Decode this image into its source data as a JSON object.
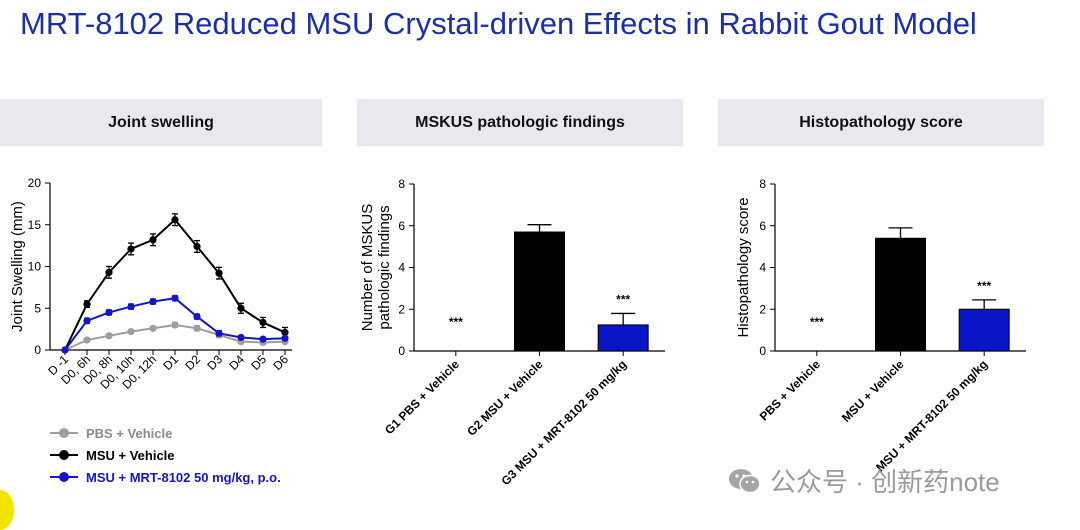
{
  "title": "MRT-8102 Reduced MSU Crystal-driven Effects in Rabbit Gout Model",
  "colors": {
    "title": "#1a2fa8",
    "pbs": "#9e9e9e",
    "vehicle": "#000000",
    "mrt": "#0a14c8",
    "header_bg": "#e7e9ee"
  },
  "panels": [
    {
      "header": "Joint swelling"
    },
    {
      "header": "MSKUS pathologic findings"
    },
    {
      "header": "Histopathology score"
    }
  ],
  "legend": [
    {
      "label": "PBS + Vehicle",
      "color": "#9e9e9e"
    },
    {
      "label": "MSU + Vehicle",
      "color": "#000000"
    },
    {
      "label": "MSU + MRT-8102 50 mg/kg, p.o.",
      "color": "#1414c8"
    }
  ],
  "watermark": {
    "text": "公众号 · 创新药note",
    "icon": "wechat-icon"
  },
  "chart_data": [
    {
      "type": "line",
      "title": "Joint swelling",
      "xlabel": "",
      "ylabel": "Joint Swelling (mm)",
      "ylim": [
        0,
        20
      ],
      "yticks": [
        "0",
        "5",
        "10",
        "15",
        "20"
      ],
      "categories": [
        "D -1",
        "D0, 6h",
        "D0, 8h",
        "D0, 10h",
        "D0, 12h",
        "D1",
        "D2",
        "D3",
        "D4",
        "D5",
        "D6"
      ],
      "series": [
        {
          "name": "PBS + Vehicle",
          "color": "#9e9e9e",
          "values": [
            0,
            1.2,
            1.7,
            2.2,
            2.6,
            3.0,
            2.6,
            1.8,
            1.0,
            0.9,
            1.0
          ],
          "errors": [
            0,
            0.2,
            0.2,
            0.2,
            0.2,
            0.3,
            0.3,
            0.3,
            0.2,
            0.2,
            0.2
          ]
        },
        {
          "name": "MSU + Vehicle",
          "color": "#000000",
          "values": [
            0,
            5.5,
            9.3,
            12.1,
            13.2,
            15.6,
            12.4,
            9.2,
            5.0,
            3.3,
            2.1
          ],
          "errors": [
            0,
            0.4,
            0.7,
            0.7,
            0.7,
            0.7,
            0.7,
            0.7,
            0.6,
            0.6,
            0.6
          ]
        },
        {
          "name": "MSU + MRT-8102 50 mg/kg, p.o.",
          "color": "#1414c8",
          "values": [
            0,
            3.5,
            4.5,
            5.2,
            5.8,
            6.2,
            4.0,
            2.0,
            1.5,
            1.3,
            1.4
          ],
          "errors": [
            0,
            0.3,
            0.3,
            0.3,
            0.3,
            0.3,
            0.3,
            0.3,
            0.2,
            0.2,
            0.2
          ]
        }
      ]
    },
    {
      "type": "bar",
      "title": "MSKUS pathologic findings",
      "ylabel_lines": [
        "Number of MSKUS",
        "pathologic findings"
      ],
      "ylim": [
        0,
        8
      ],
      "yticks": [
        "0",
        "2",
        "4",
        "6",
        "8"
      ],
      "categories": [
        "G1 PBS + Vehicle",
        "G2 MSU + Vehicle",
        "G3 MSU + MRT-8102 50 mg/kg"
      ],
      "values": [
        0,
        5.7,
        1.25
      ],
      "errors": [
        0,
        0.35,
        0.55
      ],
      "colors": [
        "#000000",
        "#000000",
        "#0a14c8"
      ],
      "annotations": [
        "***",
        "",
        "***"
      ]
    },
    {
      "type": "bar",
      "title": "Histopathology score",
      "ylabel_lines": [
        "Histopathology score"
      ],
      "ylim": [
        0,
        8
      ],
      "yticks": [
        "0",
        "2",
        "4",
        "6",
        "8"
      ],
      "categories": [
        "PBS + Vehicle",
        "MSU + Vehicle",
        "MSU + MRT-8102 50 mg/kg"
      ],
      "values": [
        0,
        5.4,
        2.0
      ],
      "errors": [
        0,
        0.5,
        0.45
      ],
      "colors": [
        "#000000",
        "#000000",
        "#0a14c8"
      ],
      "annotations": [
        "***",
        "",
        "***"
      ]
    }
  ]
}
